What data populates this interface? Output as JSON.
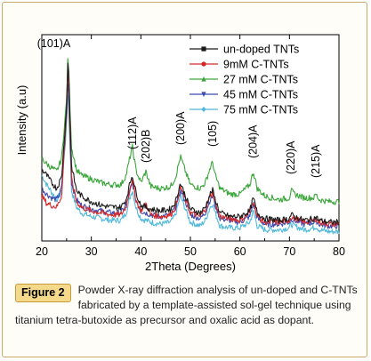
{
  "figure": {
    "label": "Figure 2",
    "caption": "Powder X-ray diffraction analysis of un-doped and C-TNTs fabricated by a template-assisted sol-gel technique using titanium tetra-butoxide as precursor and oxalic acid as dopant."
  },
  "chart_data": {
    "type": "line",
    "title": "",
    "xlabel": "2Theta  (Degrees)",
    "ylabel": "Intensity (a.u)",
    "xlim": [
      20,
      80
    ],
    "xticks": [
      20,
      30,
      40,
      50,
      60,
      70,
      80
    ],
    "yticks_shown": false,
    "legend_position": "top-right",
    "peaks": [
      {
        "label": "(101)A",
        "x": 25.3
      },
      {
        "label": "(112)A",
        "x": 38.3
      },
      {
        "label": "(202)B",
        "x": 41.0
      },
      {
        "label": "(200)A",
        "x": 48.0
      },
      {
        "label": "(105)",
        "x": 54.5
      },
      {
        "label": "(204)A",
        "x": 62.7
      },
      {
        "label": "(220)A",
        "x": 70.3
      },
      {
        "label": "(215)A",
        "x": 75.3
      }
    ],
    "x": [
      20,
      21,
      22,
      23,
      24,
      25,
      25.3,
      26,
      27,
      28,
      30,
      32,
      34,
      36,
      37,
      38,
      38.3,
      39,
      40,
      41,
      42,
      44,
      46,
      47,
      48,
      49,
      50,
      52,
      53,
      54,
      54.5,
      55,
      56,
      58,
      60,
      62,
      62.7,
      63.5,
      65,
      68,
      70,
      70.3,
      71,
      73,
      75,
      75.3,
      76,
      78,
      80
    ],
    "series": [
      {
        "name": "un-doped TNTs",
        "color": "#1a1a1a",
        "marker": "square",
        "values": [
          38,
          35,
          31,
          28,
          34,
          72,
          99,
          40,
          27,
          24,
          21,
          19,
          18,
          18,
          22,
          33,
          35,
          26,
          19,
          18,
          17,
          16,
          17,
          21,
          31,
          24,
          17,
          15,
          18,
          25,
          27,
          22,
          15,
          13,
          13,
          16,
          23,
          15,
          12,
          11,
          12,
          14,
          13,
          11,
          12,
          13,
          11,
          10,
          10
        ]
      },
      {
        "name": "9mM C-TNTs",
        "color": "#d62728",
        "marker": "circle",
        "values": [
          24,
          20,
          19,
          18,
          24,
          70,
          95,
          33,
          21,
          18,
          16,
          15,
          14,
          14,
          18,
          30,
          32,
          22,
          16,
          20,
          14,
          13,
          14,
          18,
          29,
          22,
          15,
          13,
          17,
          24,
          26,
          20,
          13,
          12,
          11,
          15,
          22,
          13,
          10,
          10,
          11,
          13,
          12,
          10,
          11,
          12,
          10,
          9,
          9
        ]
      },
      {
        "name": "27 mM C-TNTs",
        "color": "#3aa63a",
        "marker": "triangle-up",
        "values": [
          44,
          41,
          39,
          37,
          44,
          75,
          100,
          50,
          38,
          35,
          33,
          31,
          30,
          30,
          35,
          47,
          50,
          38,
          31,
          37,
          29,
          28,
          29,
          34,
          45,
          37,
          30,
          28,
          31,
          39,
          42,
          35,
          28,
          25,
          25,
          30,
          37,
          28,
          24,
          22,
          23,
          27,
          25,
          23,
          23,
          25,
          22,
          21,
          21
        ]
      },
      {
        "name": "45 mM C-TNTs",
        "color": "#3b4bb0",
        "marker": "triangle-down",
        "values": [
          28,
          25,
          23,
          22,
          28,
          66,
          88,
          31,
          22,
          19,
          17,
          16,
          15,
          15,
          19,
          29,
          31,
          22,
          16,
          15,
          14,
          13,
          14,
          18,
          27,
          21,
          14,
          12,
          15,
          22,
          24,
          19,
          12,
          11,
          10,
          13,
          20,
          12,
          9,
          9,
          10,
          12,
          11,
          9,
          10,
          11,
          9,
          8,
          8
        ]
      },
      {
        "name": "75 mM C-TNTs",
        "color": "#4fb8d9",
        "marker": "diamond",
        "values": [
          35,
          30,
          26,
          22,
          26,
          62,
          82,
          27,
          18,
          15,
          13,
          12,
          11,
          11,
          15,
          25,
          27,
          18,
          12,
          11,
          10,
          9,
          10,
          14,
          24,
          17,
          10,
          8,
          11,
          18,
          20,
          15,
          8,
          7,
          7,
          10,
          16,
          8,
          6,
          6,
          7,
          9,
          8,
          6,
          7,
          8,
          6,
          5,
          5
        ]
      }
    ]
  }
}
